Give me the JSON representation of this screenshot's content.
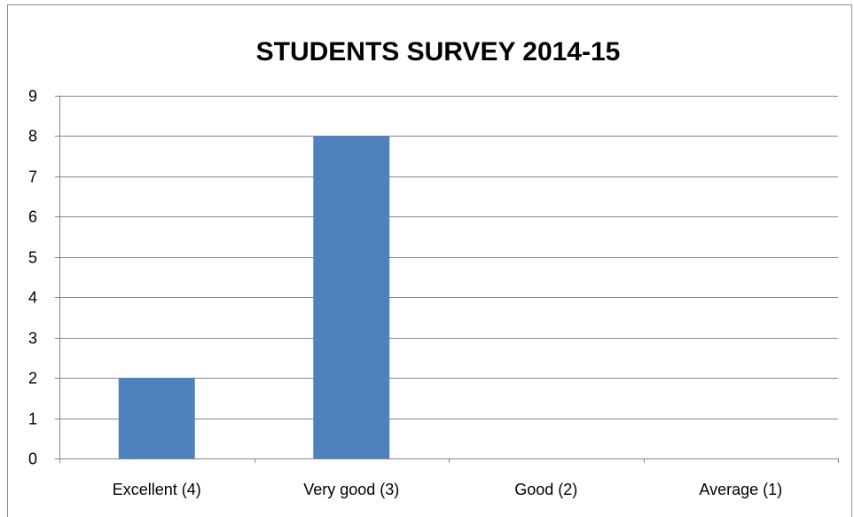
{
  "chart_data": {
    "type": "bar",
    "title": "STUDENTS SURVEY 2014-15",
    "xlabel": "",
    "ylabel": "",
    "categories": [
      "Excellent (4)",
      "Very good (3)",
      "Good (2)",
      "Average (1)"
    ],
    "values": [
      2,
      8,
      0,
      0
    ],
    "ylim": [
      0,
      9
    ],
    "yticks": [
      "0",
      "1",
      "2",
      "3",
      "4",
      "5",
      "6",
      "7",
      "8",
      "9"
    ],
    "grid": true,
    "legend": "none",
    "bar_color": "#4f81bd",
    "grid_color": "#868686"
  }
}
